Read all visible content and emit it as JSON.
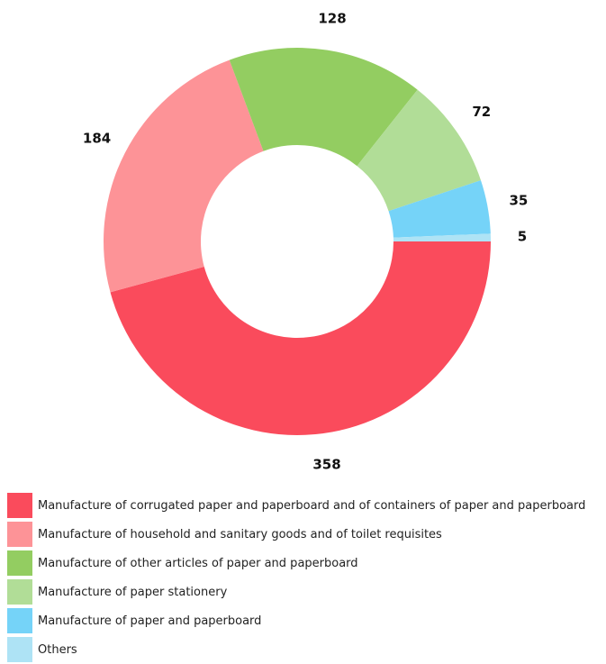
{
  "chart_data": {
    "type": "donut",
    "categories": [
      "Manufacture of corrugated paper and paperboard and of containers of paper and paperboard",
      "Manufacture of household and sanitary goods and of toilet requisites",
      "Manufacture of other articles of paper and paperboard",
      "Manufacture of paper stationery",
      "Manufacture of paper and paperboard",
      "Others"
    ],
    "values": [
      358,
      184,
      128,
      72,
      35,
      5
    ],
    "colors": [
      "#fa4b5c",
      "#fd9397",
      "#93cd61",
      "#b1dd97",
      "#75d3f8",
      "#aee3f5"
    ],
    "legend": "bottom"
  }
}
